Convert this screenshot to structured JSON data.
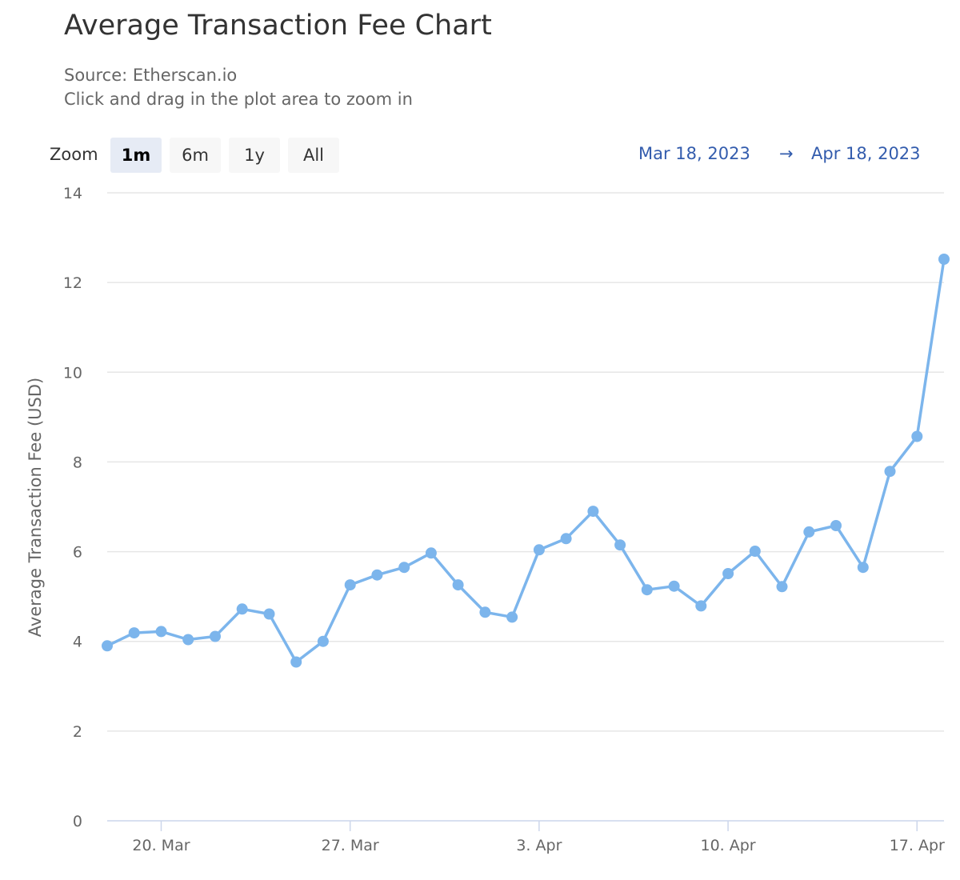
{
  "header": {
    "title": "Average Transaction Fee Chart",
    "subtitle_source": "Source: Etherscan.io",
    "subtitle_hint": "Click and drag in the plot area to zoom in"
  },
  "zoom": {
    "label": "Zoom",
    "buttons": [
      {
        "label": "1m",
        "active": true
      },
      {
        "label": "6m",
        "active": false
      },
      {
        "label": "1y",
        "active": false
      },
      {
        "label": "All",
        "active": false
      }
    ]
  },
  "range": {
    "from": "Mar 18, 2023",
    "arrow": "→",
    "to": "Apr 18, 2023"
  },
  "colors": {
    "series": "#7cb5ec",
    "grid": "#e6e6e6",
    "range_text": "#335cad"
  },
  "chart_data": {
    "type": "line",
    "title": "Average Transaction Fee Chart",
    "ylabel": "Average Transaction Fee (USD)",
    "xlabel": "",
    "ylim": [
      0,
      14
    ],
    "yticks": [
      0,
      2,
      4,
      6,
      8,
      10,
      12,
      14
    ],
    "xlim": [
      "2023-03-18",
      "2023-04-18"
    ],
    "xticks": [
      {
        "date": "2023-03-20",
        "label": "20. Mar"
      },
      {
        "date": "2023-03-27",
        "label": "27. Mar"
      },
      {
        "date": "2023-04-03",
        "label": "3. Apr"
      },
      {
        "date": "2023-04-10",
        "label": "10. Apr"
      },
      {
        "date": "2023-04-17",
        "label": "17. Apr"
      }
    ],
    "grid": true,
    "legend": "none",
    "x": [
      "2023-03-18",
      "2023-03-19",
      "2023-03-20",
      "2023-03-21",
      "2023-03-22",
      "2023-03-23",
      "2023-03-24",
      "2023-03-25",
      "2023-03-26",
      "2023-03-27",
      "2023-03-28",
      "2023-03-29",
      "2023-03-30",
      "2023-03-31",
      "2023-04-01",
      "2023-04-02",
      "2023-04-03",
      "2023-04-04",
      "2023-04-05",
      "2023-04-06",
      "2023-04-07",
      "2023-04-08",
      "2023-04-09",
      "2023-04-10",
      "2023-04-11",
      "2023-04-12",
      "2023-04-13",
      "2023-04-14",
      "2023-04-15",
      "2023-04-16",
      "2023-04-17",
      "2023-04-18"
    ],
    "values": [
      3.9,
      4.19,
      4.22,
      4.04,
      4.11,
      4.72,
      4.61,
      3.54,
      4.0,
      5.26,
      5.48,
      5.65,
      5.97,
      5.26,
      4.65,
      4.54,
      6.04,
      6.29,
      6.9,
      6.15,
      5.15,
      5.23,
      4.79,
      5.51,
      6.01,
      5.22,
      6.44,
      6.58,
      5.65,
      7.79,
      8.57,
      12.52
    ]
  }
}
